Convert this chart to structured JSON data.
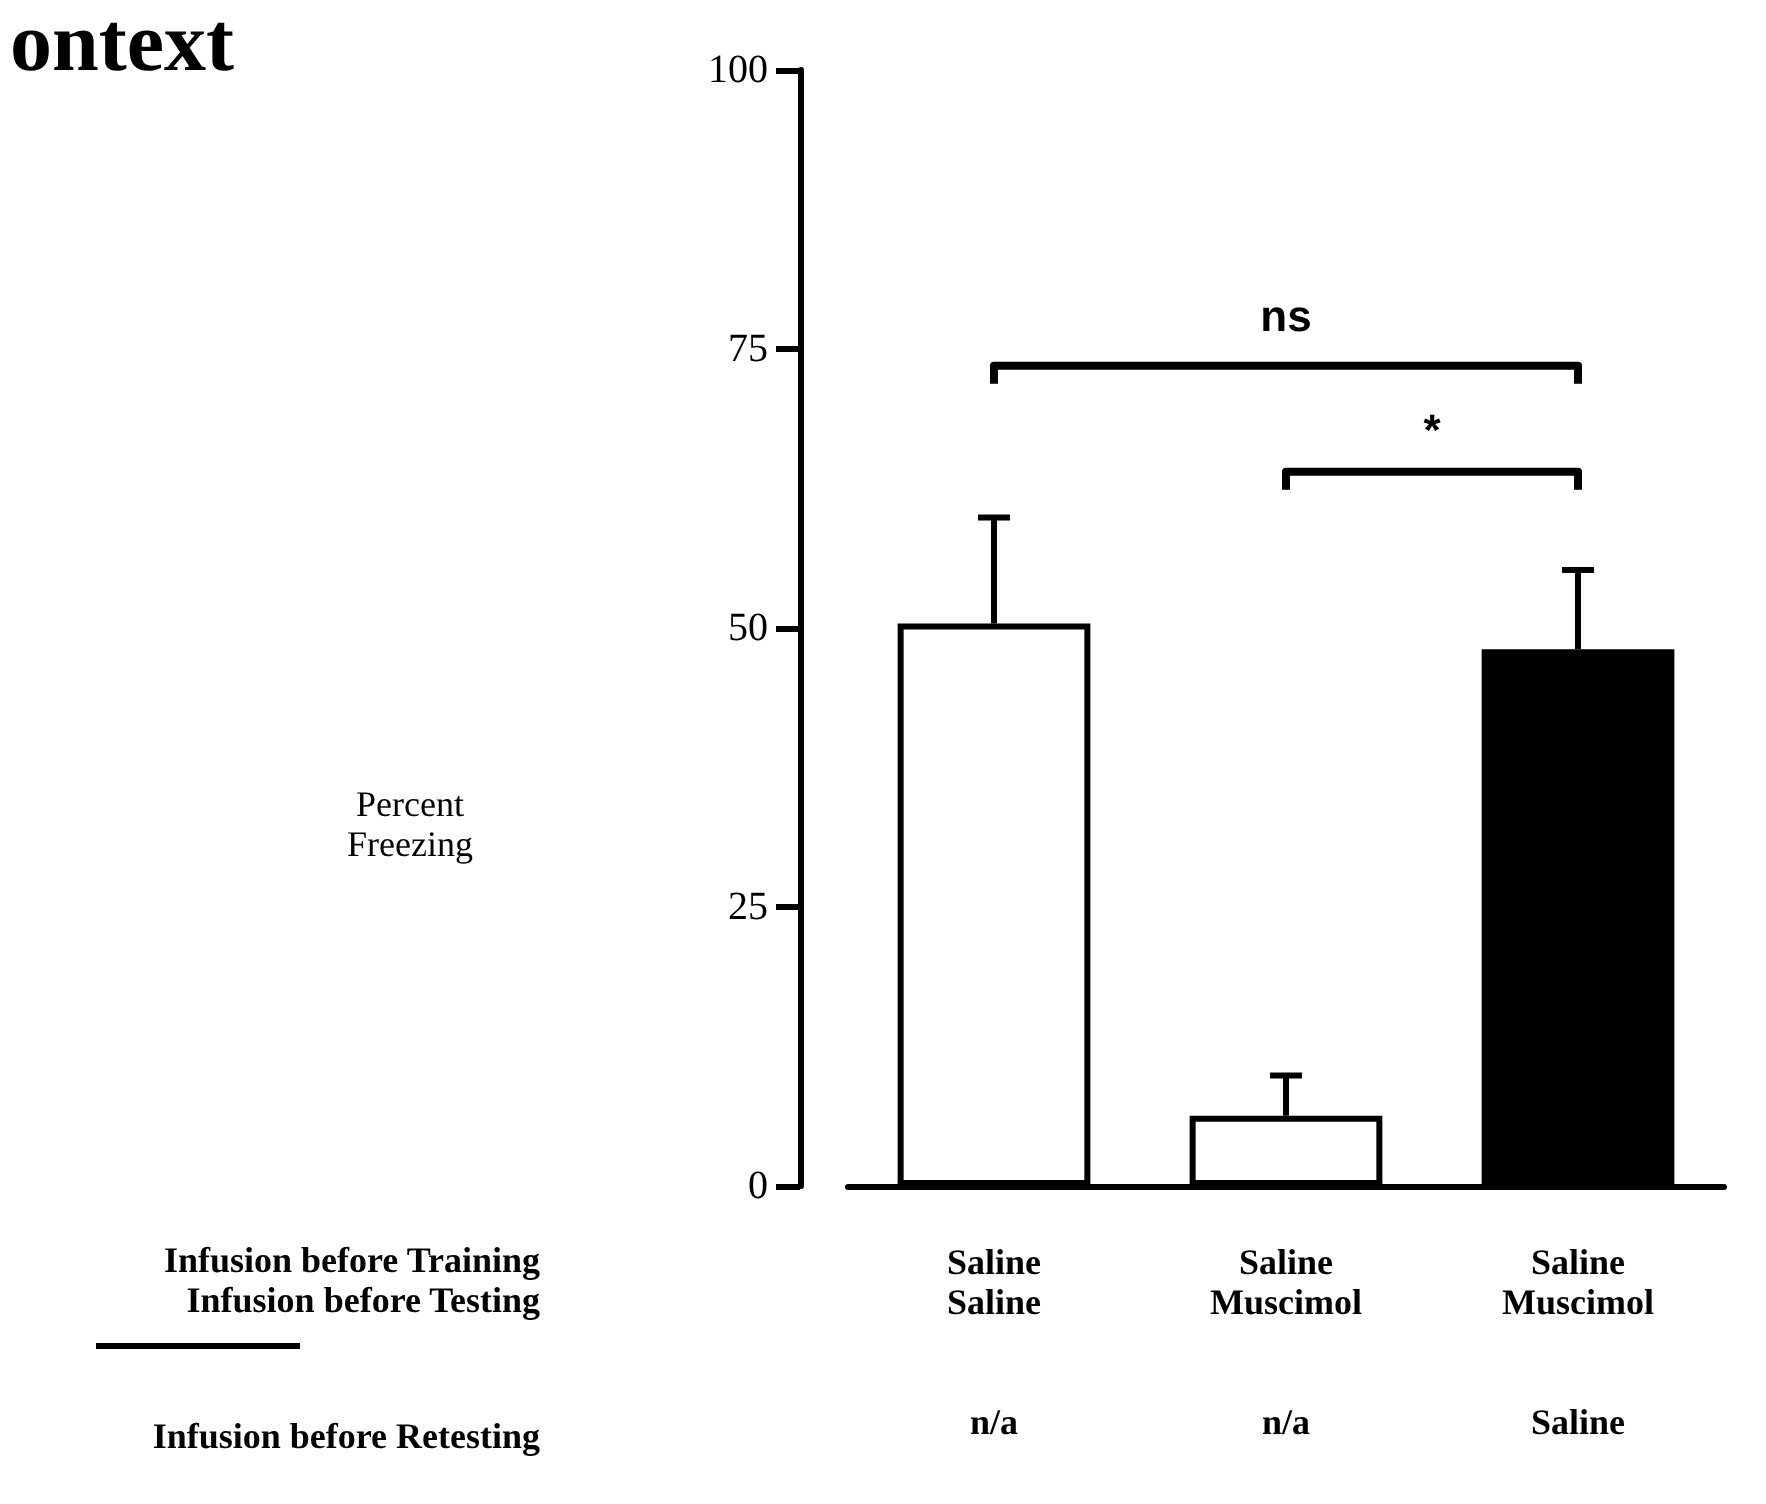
{
  "chart_data": {
    "type": "bar",
    "title": "ontext",
    "categories": [
      "Saline\nSaline\nn/a",
      "Saline\nMuscimol\nn/a",
      "Saline\nMuscimol\nSaline"
    ],
    "values": [
      50.4,
      6.3,
      48.1
    ],
    "colors": [
      "#ffffff",
      "#ffffff",
      "#000000"
    ],
    "errors": [
      [
        50.4,
        59.9
      ],
      [
        6.3,
        9.9
      ],
      [
        48.1,
        55.2
      ]
    ],
    "ylim": [
      0,
      100
    ],
    "yticks": [
      0,
      25,
      50,
      75,
      100
    ],
    "grid": false,
    "annotations": [
      "ns",
      "*",
      "Infusion before Training",
      "Infusion before Testing",
      "Infusion before Retesting",
      "Percent\nFreezing"
    ]
  }
}
